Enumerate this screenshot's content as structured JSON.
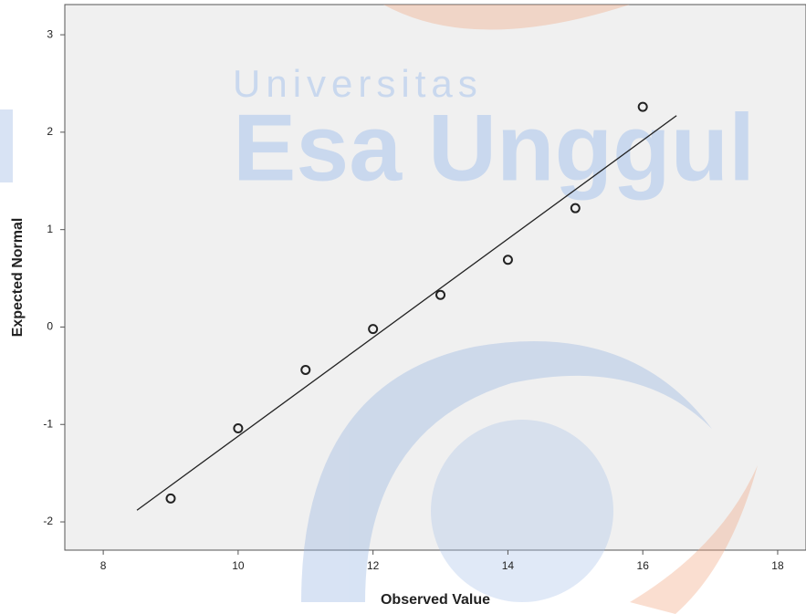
{
  "chart_data": {
    "type": "scatter",
    "x_label": "Observed Value",
    "y_label": "Expected Normal",
    "x": [
      9,
      10,
      11,
      12,
      13,
      14,
      15,
      16
    ],
    "values": [
      -1.76,
      -1.04,
      -0.44,
      -0.02,
      0.33,
      0.69,
      1.22,
      2.26
    ],
    "color": "#222222",
    "reference_line": {
      "x": [
        8.5,
        16.5
      ],
      "y": [
        -1.88,
        2.17
      ],
      "color": "#222222"
    },
    "xlim": [
      7.43,
      18.42
    ],
    "ylim": [
      -2.29,
      3.31
    ],
    "xticks": [
      8,
      10,
      12,
      14,
      16,
      18
    ],
    "yticks": [
      -2,
      -1,
      0,
      1,
      2,
      3
    ],
    "watermark": [
      "Universitas",
      "Esa Unggul"
    ]
  }
}
